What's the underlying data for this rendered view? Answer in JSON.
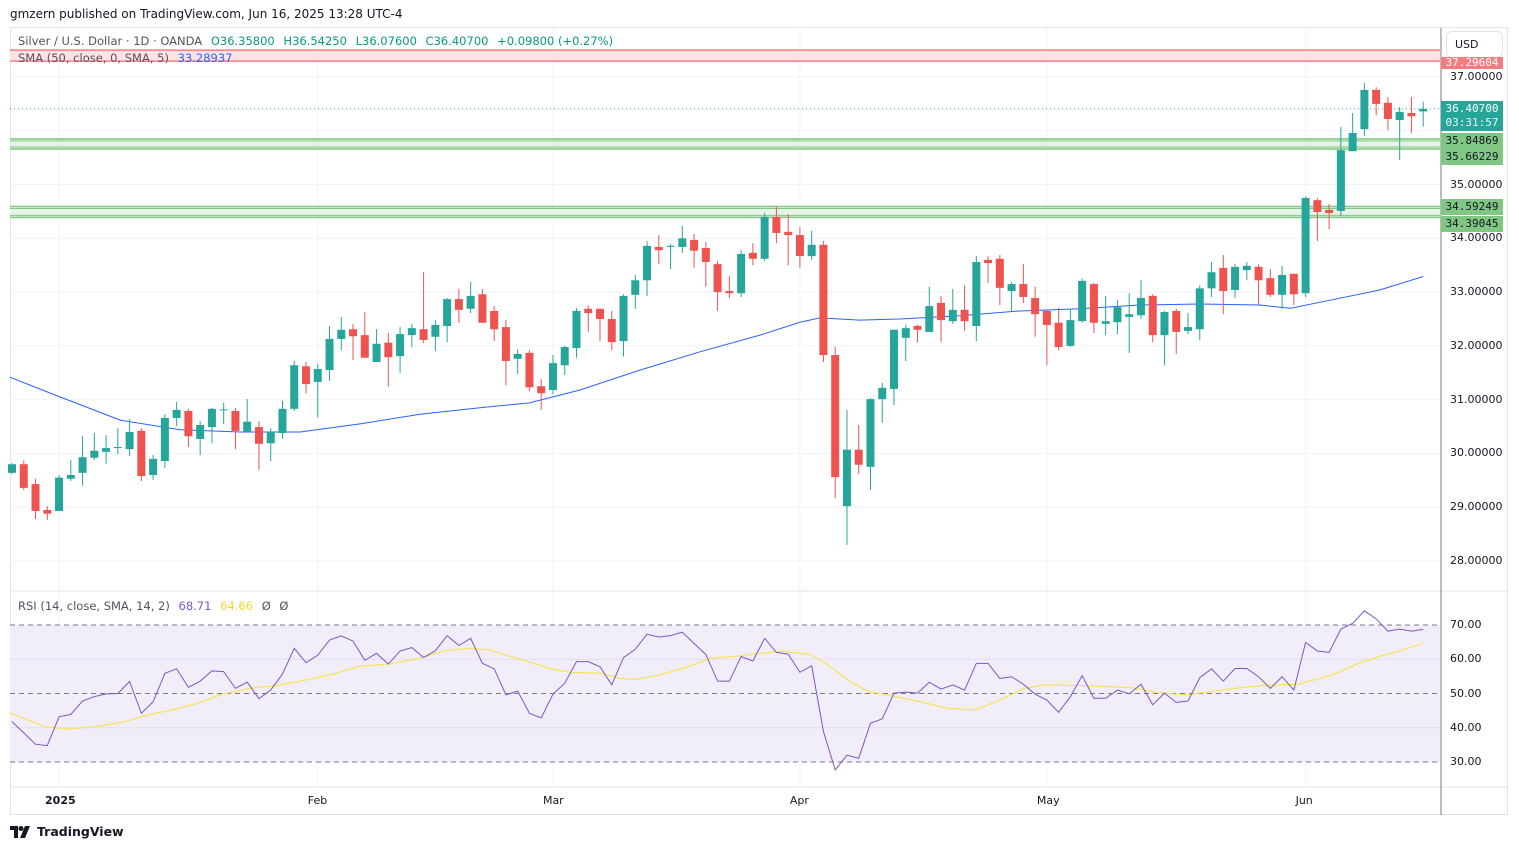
{
  "header": {
    "published": "gmzern published on TradingView.com, Jun 16, 2025 13:28 UTC-4"
  },
  "legend": {
    "symbol": "Silver / U.S. Dollar · 1D · OANDA",
    "open": "O36.35800",
    "high": "H36.54250",
    "low": "L36.07600",
    "close": "C36.40700",
    "change": "+0.09800 (+0.27%)",
    "sma_label": "SMA (50, close, 0, SMA, 5)",
    "sma_value": "33.28937",
    "rsi_label": "RSI (14, close, SMA, 14, 2)",
    "rsi_value": "68.71",
    "rsi_sma_value": "64.66",
    "rsi_extra1": "Ø",
    "rsi_extra2": "Ø"
  },
  "currency": "USD",
  "price_labels": {
    "current": "36.40700",
    "countdown": "03:31:57",
    "resistance": "37.29604",
    "zone1_top": "35.84869",
    "zone1_bottom": "35.66229",
    "zone2_top": "34.59249",
    "zone2_bottom": "34.39045"
  },
  "colors": {
    "up": "#26a69a",
    "down": "#ef5350",
    "sma": "#2962ff",
    "rsi": "#7e57c2",
    "rsi_sma": "#f7e436",
    "zone_green": "#81c784",
    "zone_red": "#f77c80"
  },
  "footer": {
    "brand": "TradingView"
  },
  "chart_data": {
    "type": "candlestick",
    "title": "Silver / U.S. Dollar · 1D · OANDA",
    "ylim": [
      27.3,
      37.9
    ],
    "price_ticks": [
      "28.00000",
      "29.00000",
      "30.00000",
      "31.00000",
      "32.00000",
      "33.00000",
      "34.00000",
      "35.00000",
      "37.00000"
    ],
    "time_labels": [
      {
        "label": "2025",
        "index": 4
      },
      {
        "label": "Feb",
        "index": 26
      },
      {
        "label": "Mar",
        "index": 46
      },
      {
        "label": "Apr",
        "index": 67
      },
      {
        "label": "May",
        "index": 88
      },
      {
        "label": "Jun",
        "index": 110
      }
    ],
    "zones": [
      {
        "top": 37.5,
        "bottom": 37.29604,
        "kind": "resistance"
      },
      {
        "top": 35.84869,
        "bottom": 35.66229,
        "kind": "support"
      },
      {
        "top": 34.59249,
        "bottom": 34.39045,
        "kind": "support"
      }
    ],
    "current_price": 36.407,
    "ohlc": [
      [
        29.64,
        29.82,
        29.62,
        29.8
      ],
      [
        29.8,
        29.87,
        29.32,
        29.36
      ],
      [
        29.43,
        29.53,
        28.78,
        28.93
      ],
      [
        28.95,
        29.02,
        28.76,
        28.88
      ],
      [
        28.93,
        29.6,
        28.93,
        29.55
      ],
      [
        29.53,
        29.88,
        29.49,
        29.6
      ],
      [
        29.64,
        30.32,
        29.4,
        29.93
      ],
      [
        29.92,
        30.38,
        29.88,
        30.05
      ],
      [
        30.03,
        30.34,
        29.81,
        30.1
      ],
      [
        30.11,
        30.47,
        29.99,
        30.12
      ],
      [
        30.08,
        30.64,
        29.95,
        30.4
      ],
      [
        30.42,
        30.47,
        29.49,
        29.58
      ],
      [
        29.6,
        29.97,
        29.51,
        29.9
      ],
      [
        29.86,
        30.73,
        29.73,
        30.66
      ],
      [
        30.66,
        30.96,
        30.51,
        30.81
      ],
      [
        30.79,
        30.83,
        30.12,
        30.32
      ],
      [
        30.27,
        30.6,
        29.97,
        30.53
      ],
      [
        30.49,
        30.85,
        30.19,
        30.83
      ],
      [
        30.81,
        30.94,
        30.55,
        30.82
      ],
      [
        30.79,
        30.85,
        30.08,
        30.42
      ],
      [
        30.4,
        31.01,
        30.4,
        30.59
      ],
      [
        30.49,
        30.6,
        29.69,
        30.18
      ],
      [
        30.19,
        30.47,
        29.86,
        30.4
      ],
      [
        30.38,
        30.98,
        30.27,
        30.83
      ],
      [
        30.83,
        31.72,
        30.79,
        31.64
      ],
      [
        31.62,
        31.7,
        31.12,
        31.29
      ],
      [
        31.33,
        31.66,
        30.67,
        31.57
      ],
      [
        31.55,
        32.37,
        31.35,
        32.13
      ],
      [
        32.13,
        32.54,
        31.92,
        32.3
      ],
      [
        32.31,
        32.41,
        31.74,
        32.18
      ],
      [
        32.2,
        32.63,
        31.78,
        31.78
      ],
      [
        31.7,
        32.31,
        31.7,
        32.04
      ],
      [
        32.06,
        32.24,
        31.24,
        31.79
      ],
      [
        31.81,
        32.35,
        31.5,
        32.22
      ],
      [
        32.2,
        32.41,
        31.98,
        32.33
      ],
      [
        32.31,
        33.37,
        32.05,
        32.11
      ],
      [
        32.17,
        32.48,
        31.9,
        32.39
      ],
      [
        32.37,
        32.89,
        32.07,
        32.87
      ],
      [
        32.87,
        33.06,
        32.43,
        32.67
      ],
      [
        32.69,
        33.19,
        32.61,
        32.93
      ],
      [
        32.96,
        33.06,
        32.43,
        32.43
      ],
      [
        32.65,
        32.74,
        32.09,
        32.31
      ],
      [
        32.35,
        32.48,
        31.27,
        31.72
      ],
      [
        31.76,
        31.94,
        31.48,
        31.85
      ],
      [
        31.87,
        31.92,
        31.16,
        31.23
      ],
      [
        31.25,
        31.38,
        30.81,
        31.12
      ],
      [
        31.18,
        31.83,
        31.1,
        31.68
      ],
      [
        31.64,
        32.0,
        31.46,
        31.98
      ],
      [
        31.96,
        32.7,
        31.78,
        32.65
      ],
      [
        32.69,
        32.76,
        32.26,
        32.61
      ],
      [
        32.69,
        32.69,
        32.09,
        32.5
      ],
      [
        32.5,
        32.65,
        31.92,
        32.07
      ],
      [
        32.09,
        32.96,
        31.8,
        32.93
      ],
      [
        32.95,
        33.32,
        32.69,
        33.22
      ],
      [
        33.22,
        33.95,
        32.93,
        33.86
      ],
      [
        33.84,
        34.06,
        33.52,
        33.78
      ],
      [
        33.85,
        33.9,
        33.43,
        33.86
      ],
      [
        33.84,
        34.23,
        33.73,
        34.0
      ],
      [
        33.97,
        34.08,
        33.45,
        33.77
      ],
      [
        33.82,
        33.93,
        33.1,
        33.56
      ],
      [
        33.52,
        33.58,
        32.65,
        33.0
      ],
      [
        33.02,
        33.3,
        32.89,
        32.98
      ],
      [
        32.98,
        33.78,
        32.91,
        33.71
      ],
      [
        33.73,
        33.91,
        33.5,
        33.62
      ],
      [
        33.62,
        34.47,
        33.58,
        34.4
      ],
      [
        34.4,
        34.58,
        33.91,
        34.1
      ],
      [
        34.12,
        34.45,
        33.5,
        34.06
      ],
      [
        34.06,
        34.21,
        33.45,
        33.67
      ],
      [
        33.67,
        34.14,
        33.6,
        33.88
      ],
      [
        33.88,
        33.95,
        31.7,
        31.83
      ],
      [
        31.83,
        31.98,
        29.17,
        29.56
      ],
      [
        29.02,
        30.81,
        28.3,
        30.07
      ],
      [
        30.07,
        30.53,
        29.62,
        29.79
      ],
      [
        29.75,
        31.03,
        29.32,
        31.01
      ],
      [
        31.01,
        31.31,
        30.57,
        31.22
      ],
      [
        31.2,
        32.3,
        30.9,
        32.3
      ],
      [
        32.15,
        32.39,
        31.72,
        32.33
      ],
      [
        32.37,
        32.39,
        32.07,
        32.3
      ],
      [
        32.26,
        33.1,
        32.26,
        32.74
      ],
      [
        32.8,
        32.93,
        32.07,
        32.48
      ],
      [
        32.46,
        33.06,
        32.41,
        32.67
      ],
      [
        32.67,
        33.13,
        32.28,
        32.46
      ],
      [
        32.37,
        33.67,
        32.09,
        33.56
      ],
      [
        33.6,
        33.67,
        33.17,
        33.54
      ],
      [
        33.62,
        33.69,
        32.76,
        33.08
      ],
      [
        33.02,
        33.19,
        32.65,
        33.15
      ],
      [
        33.15,
        33.52,
        32.8,
        32.91
      ],
      [
        32.89,
        33.1,
        32.17,
        32.59
      ],
      [
        32.65,
        32.67,
        31.64,
        32.39
      ],
      [
        32.43,
        32.71,
        31.92,
        31.98
      ],
      [
        32.0,
        32.67,
        31.98,
        32.48
      ],
      [
        32.46,
        33.25,
        32.43,
        33.21
      ],
      [
        33.15,
        33.17,
        32.24,
        32.43
      ],
      [
        32.41,
        32.93,
        32.2,
        32.46
      ],
      [
        32.44,
        32.85,
        32.22,
        32.72
      ],
      [
        32.54,
        32.98,
        31.87,
        32.59
      ],
      [
        32.57,
        33.22,
        32.5,
        32.89
      ],
      [
        32.93,
        32.96,
        32.07,
        32.2
      ],
      [
        32.2,
        32.65,
        31.64,
        32.63
      ],
      [
        32.65,
        32.69,
        31.85,
        32.26
      ],
      [
        32.28,
        32.61,
        32.22,
        32.35
      ],
      [
        32.31,
        33.13,
        32.11,
        33.07
      ],
      [
        33.07,
        33.56,
        32.91,
        33.37
      ],
      [
        33.45,
        33.69,
        32.59,
        33.02
      ],
      [
        33.04,
        33.52,
        32.89,
        33.47
      ],
      [
        33.41,
        33.56,
        33.22,
        33.49
      ],
      [
        33.47,
        33.52,
        32.76,
        33.22
      ],
      [
        33.26,
        33.43,
        32.91,
        32.95
      ],
      [
        32.95,
        33.49,
        32.69,
        33.32
      ],
      [
        33.34,
        33.34,
        32.76,
        32.96
      ],
      [
        32.98,
        34.78,
        32.91,
        34.75
      ],
      [
        34.71,
        34.75,
        33.95,
        34.49
      ],
      [
        34.53,
        34.64,
        34.17,
        34.47
      ],
      [
        34.51,
        36.07,
        34.42,
        35.64
      ],
      [
        35.62,
        36.33,
        35.62,
        35.96
      ],
      [
        36.03,
        36.89,
        35.9,
        36.76
      ],
      [
        36.76,
        36.81,
        36.29,
        36.5
      ],
      [
        36.52,
        36.63,
        36.01,
        36.22
      ],
      [
        36.2,
        36.44,
        35.46,
        36.35
      ],
      [
        36.33,
        36.63,
        35.96,
        36.27
      ],
      [
        36.359,
        36.5425,
        36.076,
        36.407
      ]
    ],
    "sma50": [
      [
        -0.2,
        31.42
      ],
      [
        4.1,
        31.05
      ],
      [
        9.2,
        30.62
      ],
      [
        14.3,
        30.44
      ],
      [
        19.4,
        30.4
      ],
      [
        24.5,
        30.4
      ],
      [
        29.6,
        30.55
      ],
      [
        34.7,
        30.73
      ],
      [
        39.8,
        30.85
      ],
      [
        44,
        30.94
      ],
      [
        48.3,
        31.18
      ],
      [
        53.4,
        31.55
      ],
      [
        58.5,
        31.89
      ],
      [
        63.6,
        32.2
      ],
      [
        67,
        32.44
      ],
      [
        68.7,
        32.52
      ],
      [
        72.1,
        32.48
      ],
      [
        75.5,
        32.5
      ],
      [
        80.6,
        32.56
      ],
      [
        85.7,
        32.65
      ],
      [
        90.8,
        32.69
      ],
      [
        95.9,
        32.76
      ],
      [
        101,
        32.78
      ],
      [
        106.1,
        32.76
      ],
      [
        108.7,
        32.7
      ],
      [
        112.1,
        32.85
      ],
      [
        116.3,
        33.04
      ],
      [
        120,
        33.29
      ]
    ],
    "rsi": {
      "ylim": [
        30,
        70
      ],
      "levels": [
        70,
        50,
        30
      ],
      "ticks": [
        "70.00",
        "60.00",
        "50.00",
        "40.00",
        "30.00"
      ],
      "values": [
        41.8,
        38.5,
        35.2,
        34.8,
        43.2,
        43.9,
        47.8,
        49.1,
        49.9,
        50.0,
        53.5,
        44.2,
        47.6,
        55.9,
        57.2,
        51.8,
        53.6,
        56.6,
        56.4,
        51.5,
        53.3,
        48.5,
        51.0,
        55.7,
        63.2,
        59.0,
        61.2,
        65.6,
        66.8,
        65.3,
        59.7,
        61.7,
        58.6,
        62.4,
        63.4,
        60.5,
        62.5,
        66.9,
        64.0,
        66.1,
        58.8,
        57.2,
        49.6,
        50.7,
        44.2,
        42.9,
        49.8,
        53.0,
        59.3,
        59.3,
        57.8,
        52.5,
        60.5,
        62.9,
        67.3,
        66.5,
        66.9,
        67.9,
        64.6,
        61.4,
        53.6,
        53.6,
        60.8,
        59.5,
        66.1,
        62.0,
        61.5,
        56.2,
        58.1,
        38.9,
        27.7,
        32.0,
        31.1,
        41.3,
        42.6,
        50.1,
        50.4,
        50.1,
        53.3,
        51.3,
        52.5,
        51.0,
        58.8,
        58.8,
        54.4,
        54.9,
        52.7,
        49.8,
        48.1,
        44.5,
        49.1,
        55.2,
        48.6,
        48.6,
        51.0,
        49.9,
        52.7,
        46.7,
        50.1,
        47.4,
        47.8,
        54.6,
        57.2,
        53.6,
        57.3,
        57.3,
        54.9,
        51.5,
        54.9,
        51.0,
        64.9,
        62.4,
        62.0,
        68.8,
        70.5,
        74.1,
        71.8,
        68.2,
        68.8,
        68.2,
        68.71
      ],
      "sma": [
        [
          -0.2,
          44.4
        ],
        [
          2.8,
          40.3
        ],
        [
          4.8,
          39.6
        ],
        [
          7.5,
          40.5
        ],
        [
          9.6,
          41.8
        ],
        [
          11.7,
          43.9
        ],
        [
          13.9,
          45.4
        ],
        [
          16,
          47.4
        ],
        [
          17.7,
          49.6
        ],
        [
          20.2,
          51.5
        ],
        [
          22.4,
          52.3
        ],
        [
          24.5,
          53.6
        ],
        [
          27,
          55.4
        ],
        [
          29.6,
          58.0
        ],
        [
          32.1,
          58.6
        ],
        [
          34.7,
          60.3
        ],
        [
          36.8,
          62.5
        ],
        [
          38.9,
          63.2
        ],
        [
          40.6,
          62.7
        ],
        [
          43.2,
          60.0
        ],
        [
          45.7,
          57.3
        ],
        [
          47.4,
          56.2
        ],
        [
          50,
          55.9
        ],
        [
          51.7,
          54.4
        ],
        [
          53,
          54.1
        ],
        [
          55.1,
          55.4
        ],
        [
          57.7,
          58.0
        ],
        [
          59.4,
          60.3
        ],
        [
          61.9,
          61.0
        ],
        [
          65.4,
          62.4
        ],
        [
          67.9,
          61.4
        ],
        [
          69.4,
          58.3
        ],
        [
          71.2,
          53.6
        ],
        [
          72.9,
          50.5
        ],
        [
          75.1,
          49.1
        ],
        [
          77,
          47.8
        ],
        [
          79.5,
          45.7
        ],
        [
          81.9,
          45.2
        ],
        [
          83.8,
          47.8
        ],
        [
          86.1,
          51.5
        ],
        [
          87.8,
          52.5
        ],
        [
          90.9,
          52.3
        ],
        [
          95.2,
          51.7
        ],
        [
          97.4,
          50.3
        ],
        [
          99.7,
          49.6
        ],
        [
          101.9,
          50.5
        ],
        [
          104,
          51.5
        ],
        [
          106.2,
          52.3
        ],
        [
          109.3,
          52.7
        ],
        [
          112.3,
          55.4
        ],
        [
          114.5,
          58.8
        ],
        [
          116.3,
          60.8
        ],
        [
          118,
          62.4
        ],
        [
          120,
          64.66
        ]
      ]
    }
  }
}
